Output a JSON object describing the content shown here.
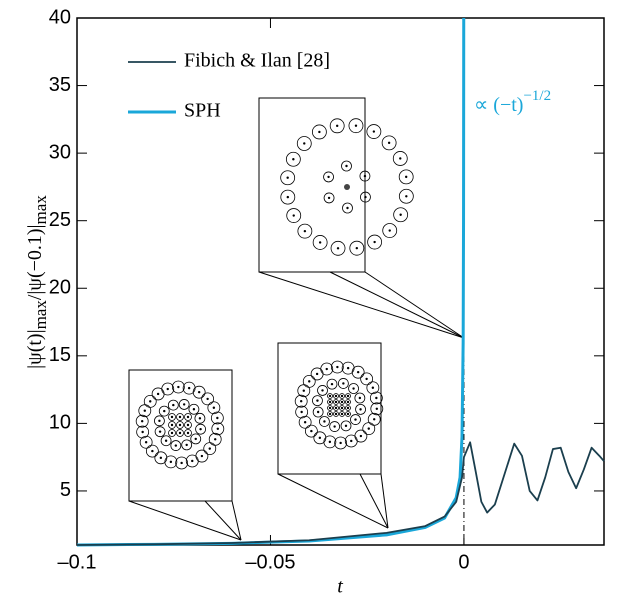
{
  "chart_data": {
    "type": "line",
    "xlabel": "t",
    "ylabel": {
      "text1": "|ψ(t)|",
      "sub1": "max",
      "text2": "/|ψ(−0.1)|",
      "sub2": "max"
    },
    "annotation": {
      "text": "∝ (−t)",
      "superscript": "−1/2"
    },
    "xlim": [
      -0.1,
      0.0362
    ],
    "ylim": [
      1,
      40
    ],
    "xticks": [
      {
        "value": -0.1,
        "label": "–0.1"
      },
      {
        "value": -0.05,
        "label": "–0.05"
      },
      0
    ],
    "yticks": [
      5,
      10,
      15,
      20,
      25,
      30,
      35,
      40
    ],
    "asymptote_x": 0,
    "legend": "upper left",
    "series": [
      {
        "name": "Fibich & Ilan [28]",
        "color": "#1b3f4e",
        "x": [
          -0.1,
          -0.08,
          -0.06,
          -0.04,
          -0.02,
          -0.01,
          -0.005,
          -0.002,
          -0.0005,
          0,
          0.0016,
          0.003,
          0.0045,
          0.006,
          0.008,
          0.01,
          0.013,
          0.015,
          0.017,
          0.019,
          0.021,
          0.023,
          0.025,
          0.027,
          0.029,
          0.031,
          0.033,
          0.035,
          0.0362
        ],
        "values": [
          1.0,
          1.05,
          1.15,
          1.35,
          1.9,
          2.4,
          3.1,
          4.2,
          6.0,
          7.5,
          8.6,
          6.5,
          4.2,
          3.4,
          4.0,
          5.8,
          8.5,
          7.6,
          5.0,
          4.3,
          6.0,
          8.1,
          8.2,
          6.4,
          5.2,
          6.6,
          8.2,
          7.6,
          7.2
        ]
      },
      {
        "name": "SPH",
        "color": "#1aa7d9",
        "x": [
          -0.1,
          -0.08,
          -0.06,
          -0.04,
          -0.02,
          -0.01,
          -0.005,
          -0.002,
          -0.001,
          -0.0005,
          -0.0002,
          -0.0001,
          -5e-05
        ],
        "values": [
          1.0,
          1.05,
          1.12,
          1.3,
          1.75,
          2.3,
          3.0,
          4.5,
          6.0,
          9.0,
          16.0,
          25.0,
          40.0
        ]
      }
    ]
  }
}
